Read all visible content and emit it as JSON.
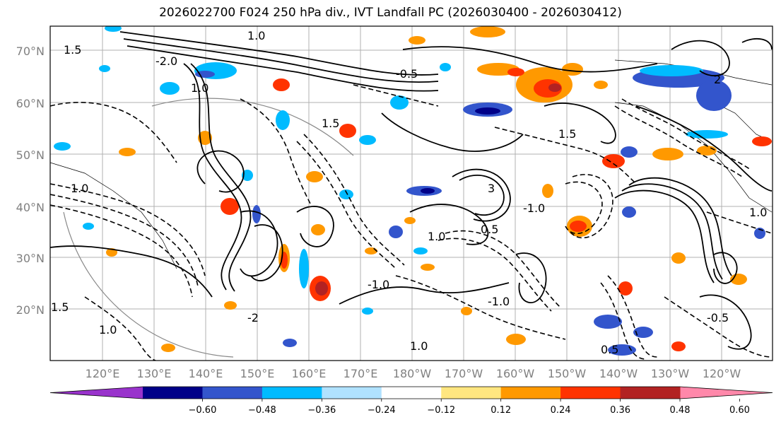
{
  "title": "2026022700 F024 250 hPa div., IVT Landfall PC (2026030400 - 2026030412)",
  "map": {
    "lat_labels": [
      "70°N",
      "60°N",
      "50°N",
      "40°N",
      "30°N",
      "20°N"
    ],
    "lon_labels": [
      "120°E",
      "130°E",
      "140°E",
      "150°E",
      "160°E",
      "170°E",
      "180°W",
      "170°W",
      "160°W",
      "150°W",
      "140°W",
      "130°W",
      "120°W"
    ]
  },
  "colorbar": {
    "ticks": [
      "−0.60",
      "−0.48",
      "−0.36",
      "−0.24",
      "−0.12",
      "0.12",
      "0.24",
      "0.36",
      "0.48",
      "0.60"
    ],
    "colors": [
      "#9933cc",
      "#000088",
      "#3355cc",
      "#00bbff",
      "#b0e2ff",
      "#ffffff",
      "#ffe680",
      "#ff9900",
      "#ff3300",
      "#b22222",
      "#ff88aa"
    ],
    "extend": "both"
  }
}
